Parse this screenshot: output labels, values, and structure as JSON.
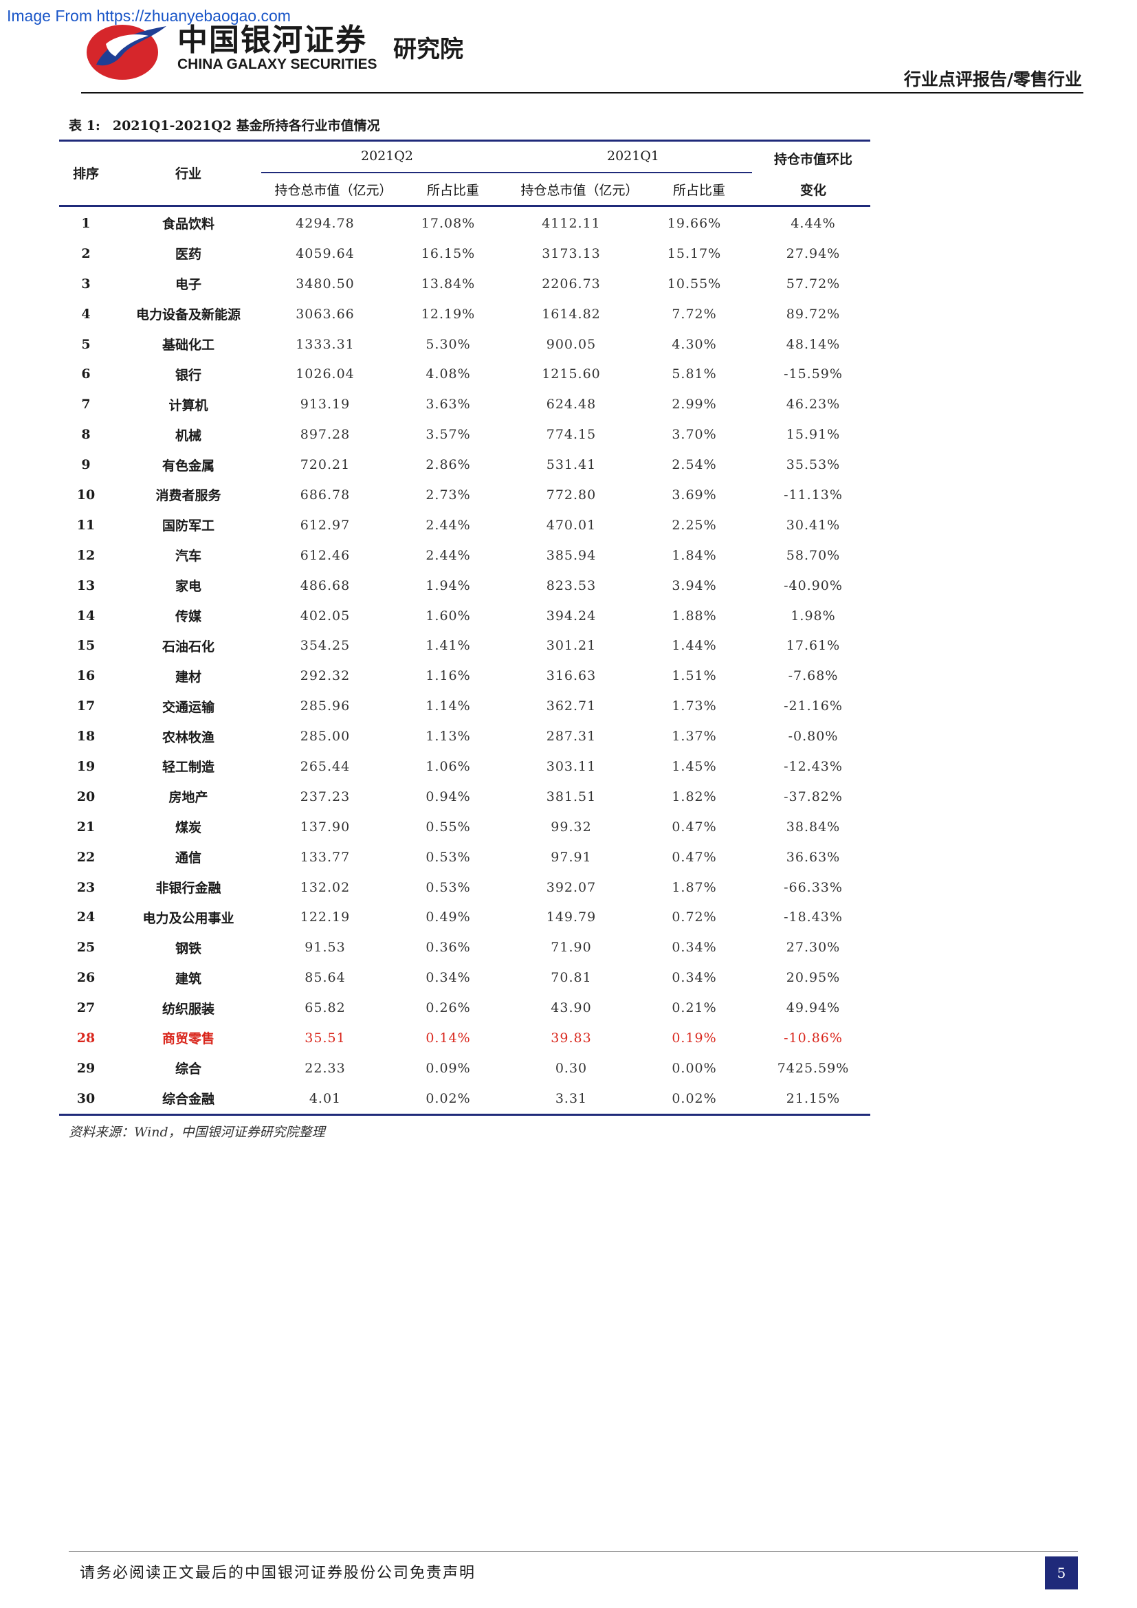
{
  "watermark": "Image From https://zhuanyebaogao.com",
  "header": {
    "logo_cn": "中国银河证券",
    "logo_en": "CHINA GALAXY SECURITIES",
    "institute": "研究院",
    "report_type": "行业点评报告/零售行业"
  },
  "table": {
    "label": "表 1:",
    "title": "2021Q1-2021Q2 基金所持各行业市值情况",
    "headers": {
      "rank": "排序",
      "industry": "行业",
      "q2": "2021Q2",
      "q1": "2021Q1",
      "value": "持仓总市值（亿元）",
      "share": "所占比重",
      "change_line1": "持仓市值环比",
      "change_line2": "变化"
    },
    "rows": [
      {
        "rank": "1",
        "industry": "食品饮料",
        "q2_value": "4294.78",
        "q2_share": "17.08%",
        "q1_value": "4112.11",
        "q1_share": "19.66%",
        "change": "4.44%"
      },
      {
        "rank": "2",
        "industry": "医药",
        "q2_value": "4059.64",
        "q2_share": "16.15%",
        "q1_value": "3173.13",
        "q1_share": "15.17%",
        "change": "27.94%"
      },
      {
        "rank": "3",
        "industry": "电子",
        "q2_value": "3480.50",
        "q2_share": "13.84%",
        "q1_value": "2206.73",
        "q1_share": "10.55%",
        "change": "57.72%"
      },
      {
        "rank": "4",
        "industry": "电力设备及新能源",
        "q2_value": "3063.66",
        "q2_share": "12.19%",
        "q1_value": "1614.82",
        "q1_share": "7.72%",
        "change": "89.72%"
      },
      {
        "rank": "5",
        "industry": "基础化工",
        "q2_value": "1333.31",
        "q2_share": "5.30%",
        "q1_value": "900.05",
        "q1_share": "4.30%",
        "change": "48.14%"
      },
      {
        "rank": "6",
        "industry": "银行",
        "q2_value": "1026.04",
        "q2_share": "4.08%",
        "q1_value": "1215.60",
        "q1_share": "5.81%",
        "change": "-15.59%"
      },
      {
        "rank": "7",
        "industry": "计算机",
        "q2_value": "913.19",
        "q2_share": "3.63%",
        "q1_value": "624.48",
        "q1_share": "2.99%",
        "change": "46.23%"
      },
      {
        "rank": "8",
        "industry": "机械",
        "q2_value": "897.28",
        "q2_share": "3.57%",
        "q1_value": "774.15",
        "q1_share": "3.70%",
        "change": "15.91%"
      },
      {
        "rank": "9",
        "industry": "有色金属",
        "q2_value": "720.21",
        "q2_share": "2.86%",
        "q1_value": "531.41",
        "q1_share": "2.54%",
        "change": "35.53%"
      },
      {
        "rank": "10",
        "industry": "消费者服务",
        "q2_value": "686.78",
        "q2_share": "2.73%",
        "q1_value": "772.80",
        "q1_share": "3.69%",
        "change": "-11.13%"
      },
      {
        "rank": "11",
        "industry": "国防军工",
        "q2_value": "612.97",
        "q2_share": "2.44%",
        "q1_value": "470.01",
        "q1_share": "2.25%",
        "change": "30.41%"
      },
      {
        "rank": "12",
        "industry": "汽车",
        "q2_value": "612.46",
        "q2_share": "2.44%",
        "q1_value": "385.94",
        "q1_share": "1.84%",
        "change": "58.70%"
      },
      {
        "rank": "13",
        "industry": "家电",
        "q2_value": "486.68",
        "q2_share": "1.94%",
        "q1_value": "823.53",
        "q1_share": "3.94%",
        "change": "-40.90%"
      },
      {
        "rank": "14",
        "industry": "传媒",
        "q2_value": "402.05",
        "q2_share": "1.60%",
        "q1_value": "394.24",
        "q1_share": "1.88%",
        "change": "1.98%"
      },
      {
        "rank": "15",
        "industry": "石油石化",
        "q2_value": "354.25",
        "q2_share": "1.41%",
        "q1_value": "301.21",
        "q1_share": "1.44%",
        "change": "17.61%"
      },
      {
        "rank": "16",
        "industry": "建材",
        "q2_value": "292.32",
        "q2_share": "1.16%",
        "q1_value": "316.63",
        "q1_share": "1.51%",
        "change": "-7.68%"
      },
      {
        "rank": "17",
        "industry": "交通运输",
        "q2_value": "285.96",
        "q2_share": "1.14%",
        "q1_value": "362.71",
        "q1_share": "1.73%",
        "change": "-21.16%"
      },
      {
        "rank": "18",
        "industry": "农林牧渔",
        "q2_value": "285.00",
        "q2_share": "1.13%",
        "q1_value": "287.31",
        "q1_share": "1.37%",
        "change": "-0.80%"
      },
      {
        "rank": "19",
        "industry": "轻工制造",
        "q2_value": "265.44",
        "q2_share": "1.06%",
        "q1_value": "303.11",
        "q1_share": "1.45%",
        "change": "-12.43%"
      },
      {
        "rank": "20",
        "industry": "房地产",
        "q2_value": "237.23",
        "q2_share": "0.94%",
        "q1_value": "381.51",
        "q1_share": "1.82%",
        "change": "-37.82%"
      },
      {
        "rank": "21",
        "industry": "煤炭",
        "q2_value": "137.90",
        "q2_share": "0.55%",
        "q1_value": "99.32",
        "q1_share": "0.47%",
        "change": "38.84%"
      },
      {
        "rank": "22",
        "industry": "通信",
        "q2_value": "133.77",
        "q2_share": "0.53%",
        "q1_value": "97.91",
        "q1_share": "0.47%",
        "change": "36.63%"
      },
      {
        "rank": "23",
        "industry": "非银行金融",
        "q2_value": "132.02",
        "q2_share": "0.53%",
        "q1_value": "392.07",
        "q1_share": "1.87%",
        "change": "-66.33%"
      },
      {
        "rank": "24",
        "industry": "电力及公用事业",
        "q2_value": "122.19",
        "q2_share": "0.49%",
        "q1_value": "149.79",
        "q1_share": "0.72%",
        "change": "-18.43%"
      },
      {
        "rank": "25",
        "industry": "钢铁",
        "q2_value": "91.53",
        "q2_share": "0.36%",
        "q1_value": "71.90",
        "q1_share": "0.34%",
        "change": "27.30%"
      },
      {
        "rank": "26",
        "industry": "建筑",
        "q2_value": "85.64",
        "q2_share": "0.34%",
        "q1_value": "70.81",
        "q1_share": "0.34%",
        "change": "20.95%"
      },
      {
        "rank": "27",
        "industry": "纺织服装",
        "q2_value": "65.82",
        "q2_share": "0.26%",
        "q1_value": "43.90",
        "q1_share": "0.21%",
        "change": "49.94%"
      },
      {
        "rank": "28",
        "industry": "商贸零售",
        "q2_value": "35.51",
        "q2_share": "0.14%",
        "q1_value": "39.83",
        "q1_share": "0.19%",
        "change": "-10.86%",
        "highlight": true
      },
      {
        "rank": "29",
        "industry": "综合",
        "q2_value": "22.33",
        "q2_share": "0.09%",
        "q1_value": "0.30",
        "q1_share": "0.00%",
        "change": "7425.59%"
      },
      {
        "rank": "30",
        "industry": "综合金融",
        "q2_value": "4.01",
        "q2_share": "0.02%",
        "q1_value": "3.31",
        "q1_share": "0.02%",
        "change": "21.15%"
      }
    ],
    "source": "资料来源：Wind，中国银河证券研究院整理"
  },
  "footer": {
    "disclaimer": "请务必阅读正文最后的中国银河证券股份公司免责声明",
    "page_number": "5"
  },
  "colors": {
    "rule": "#1f2a7a",
    "highlight": "#d9261c",
    "logo_red": "#d6262b",
    "logo_blue": "#1f3f95"
  }
}
